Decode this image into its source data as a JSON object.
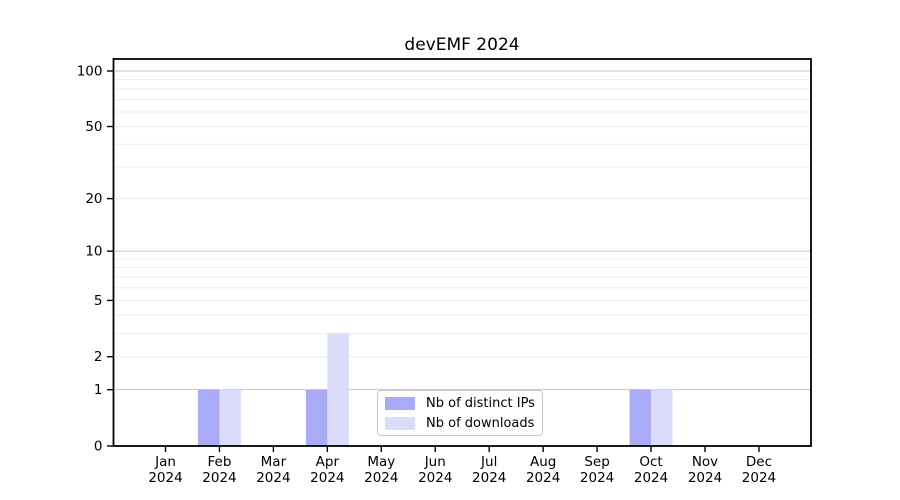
{
  "chart_data": {
    "type": "bar",
    "title": "devEMF 2024",
    "categories": [
      "Jan",
      "Feb",
      "Mar",
      "Apr",
      "May",
      "Jun",
      "Jul",
      "Aug",
      "Sep",
      "Oct",
      "Nov",
      "Dec"
    ],
    "year_label": "2024",
    "series": [
      {
        "name": "Nb of distinct IPs",
        "color": "#a9abf6",
        "values": [
          0,
          1,
          0,
          1,
          0,
          0,
          0,
          0,
          0,
          1,
          0,
          0
        ]
      },
      {
        "name": "Nb of downloads",
        "color": "#dbdcfa",
        "values": [
          0,
          1,
          0,
          3,
          0,
          0,
          0,
          0,
          0,
          1,
          0,
          0
        ]
      }
    ],
    "yscale": "log1p",
    "ytick_labels": [
      0,
      1,
      2,
      5,
      10,
      20,
      50,
      100
    ],
    "ymax_tick": 100,
    "major_gridlines": [
      1,
      10,
      100
    ],
    "minor_gridlines": [
      2,
      3,
      4,
      5,
      6,
      7,
      8,
      9,
      20,
      30,
      40,
      50,
      60,
      70,
      80,
      90
    ],
    "grid": true,
    "legend_position": "bottom-center-inside",
    "colors": {
      "major_grid": "#c6c6c6",
      "minor_grid": "#ececec",
      "axis": "#000000",
      "text": "#000000",
      "background": "#ffffff"
    }
  }
}
